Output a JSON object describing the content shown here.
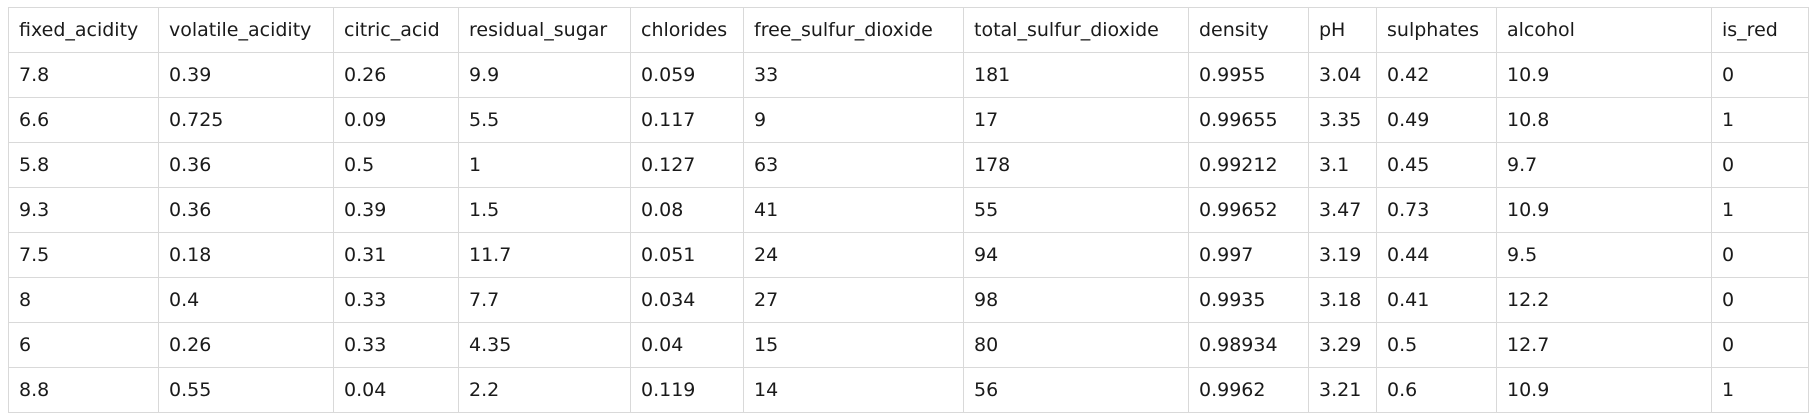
{
  "table": {
    "columns": [
      "fixed_acidity",
      "volatile_acidity",
      "citric_acid",
      "residual_sugar",
      "chlorides",
      "free_sulfur_dioxide",
      "total_sulfur_dioxide",
      "density",
      "pH",
      "sulphates",
      "alcohol",
      "is_red"
    ],
    "rows": [
      [
        "7.8",
        "0.39",
        "0.26",
        "9.9",
        "0.059",
        "33",
        "181",
        "0.9955",
        "3.04",
        "0.42",
        "10.9",
        "0"
      ],
      [
        "6.6",
        "0.725",
        "0.09",
        "5.5",
        "0.117",
        "9",
        "17",
        "0.99655",
        "3.35",
        "0.49",
        "10.8",
        "1"
      ],
      [
        "5.8",
        "0.36",
        "0.5",
        "1",
        "0.127",
        "63",
        "178",
        "0.99212",
        "3.1",
        "0.45",
        "9.7",
        "0"
      ],
      [
        "9.3",
        "0.36",
        "0.39",
        "1.5",
        "0.08",
        "41",
        "55",
        "0.99652",
        "3.47",
        "0.73",
        "10.9",
        "1"
      ],
      [
        "7.5",
        "0.18",
        "0.31",
        "11.7",
        "0.051",
        "24",
        "94",
        "0.997",
        "3.19",
        "0.44",
        "9.5",
        "0"
      ],
      [
        "8",
        "0.4",
        "0.33",
        "7.7",
        "0.034",
        "27",
        "98",
        "0.9935",
        "3.18",
        "0.41",
        "12.2",
        "0"
      ],
      [
        "6",
        "0.26",
        "0.33",
        "4.35",
        "0.04",
        "15",
        "80",
        "0.98934",
        "3.29",
        "0.5",
        "12.7",
        "0"
      ],
      [
        "8.8",
        "0.55",
        "0.04",
        "2.2",
        "0.119",
        "14",
        "56",
        "0.9962",
        "3.21",
        "0.6",
        "10.9",
        "1"
      ]
    ]
  }
}
